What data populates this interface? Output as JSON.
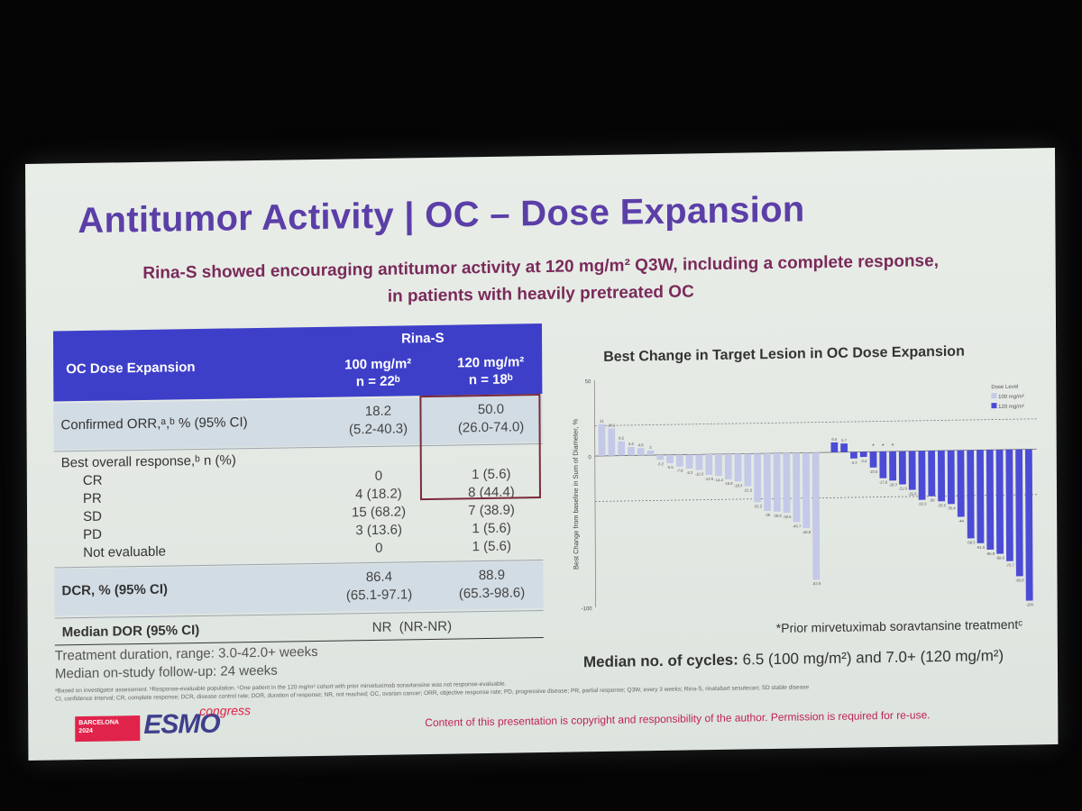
{
  "slide": {
    "title": "Antitumor Activity | OC – Dose Expansion",
    "subtitle_line1": "Rina-S showed encouraging antitumor activity at 120 mg/m² Q3W, including a complete response,",
    "subtitle_line2": "in patients with heavily pretreated OC"
  },
  "table": {
    "header_group": "Rina-S",
    "header_label": "OC Dose Expansion",
    "col1_dose": "100 mg/m²",
    "col1_n": "n = 22ᵇ",
    "col2_dose": "120 mg/m²",
    "col2_n": "n = 18ᵇ",
    "orr_label": "Confirmed ORR,ᵃ,ᵇ % (95% CI)",
    "orr_col1": "18.2",
    "orr_col1_ci": "(5.2-40.3)",
    "orr_col2": "50.0",
    "orr_col2_ci": "(26.0-74.0)",
    "bor_label": "Best overall response,ᵇ n (%)",
    "responses": [
      {
        "label": "CR",
        "col1": "0",
        "col2": "1 (5.6)"
      },
      {
        "label": "PR",
        "col1": "4 (18.2)",
        "col2": "8 (44.4)"
      },
      {
        "label": "SD",
        "col1": "15 (68.2)",
        "col2": "7 (38.9)"
      },
      {
        "label": "PD",
        "col1": "3 (13.6)",
        "col2": "1 (5.6)"
      },
      {
        "label": "Not evaluable",
        "col1": "0",
        "col2": "1 (5.6)"
      }
    ],
    "dcr_label": "DCR, % (95% CI)",
    "dcr_col1": "86.4",
    "dcr_col1_ci": "(65.1-97.1)",
    "dcr_col2": "88.9",
    "dcr_col2_ci": "(65.3-98.6)",
    "dor_label": "Median DOR (95% CI)",
    "dor_value": "NR  (NR-NR)"
  },
  "footer": {
    "treatment_duration": "Treatment duration, range: 3.0-42.0+ weeks",
    "followup": "Median on-study follow-up: 24 weeks",
    "footnote1": "ᵃBased on investigator assessment. ᵇResponse-evaluable population. ᶜOne patient in the 120 mg/m² cohort with prior mirvetuximab soravtansine was not response-evaluable.",
    "footnote2": "CI, confidence interval; CR, complete response; DCR, disease control rate; DOR, duration of response; NR, not reached; OC, ovarian cancer; ORR, objective response rate; PD, progressive disease; PR, partial response; Q3W, every 3 weeks; Rina-S, rinatabart sesutecan; SD stable disease",
    "copyright": "Content of this presentation is copyright and responsibility of the author. Permission is required for re-use.",
    "logo_city": "BARCELONA",
    "logo_year": "2024",
    "logo_esmo": "ESMO",
    "logo_congress": "congress"
  },
  "chart_notes": {
    "prior_note": "*Prior mirvetuximab soravtansine treatmentᶜ",
    "cycles_label": "Median no. of cycles:",
    "cycles_value": "6.5 (100 mg/m²) and 7.0+ (120 mg/m²)"
  },
  "colors": {
    "title": "#5b3fa8",
    "subtitle": "#7a2a5a",
    "table_header": "#3d3fc9",
    "bar_100": "#c4c9e8",
    "bar_120": "#4b4bd6"
  },
  "chart_data": {
    "type": "bar",
    "title": "Best Change in Target Lesion in OC Dose Expansion",
    "ylabel": "Best Change from baseline in Sum of Diameter, %",
    "ylim": [
      -100,
      50
    ],
    "yticks": [
      50,
      0,
      -100
    ],
    "reference_lines": [
      20,
      -30
    ],
    "legend_title": "Dose Level",
    "series": [
      {
        "name": "100 mg/m²",
        "values": [
          21,
          18.1,
          9.5,
          5.6,
          4.8,
          3,
          -3.2,
          -5.5,
          -7.8,
          -9.3,
          -10.3,
          -13.6,
          -14.4,
          -16.8,
          -18.3,
          -21.5,
          -32.2,
          -38.0,
          -38.6,
          -39.5,
          -45.7,
          -49.8,
          -83.9
        ],
        "prior_mirv": [
          false,
          false,
          false,
          false,
          false,
          false,
          false,
          false,
          false,
          false,
          false,
          false,
          false,
          false,
          false,
          false,
          false,
          false,
          false,
          false,
          false,
          false,
          false
        ]
      },
      {
        "name": "120 mg/m²",
        "values": [
          6.5,
          5.7,
          -4.3,
          -3.4,
          -10.5,
          -17.6,
          -19.3,
          -21.9,
          -25.6,
          -32.3,
          -30.0,
          -33.5,
          -35.4,
          -44,
          -58.3,
          -61.6,
          -65.9,
          -68.8,
          -73.7,
          -83.8,
          -100
        ],
        "prior_mirv": [
          false,
          false,
          false,
          false,
          true,
          true,
          true,
          false,
          false,
          false,
          false,
          false,
          false,
          false,
          false,
          false,
          false,
          false,
          false,
          false,
          false
        ]
      }
    ],
    "series_order": "100 mg/m² bars first, then 120 mg/m² bars"
  }
}
